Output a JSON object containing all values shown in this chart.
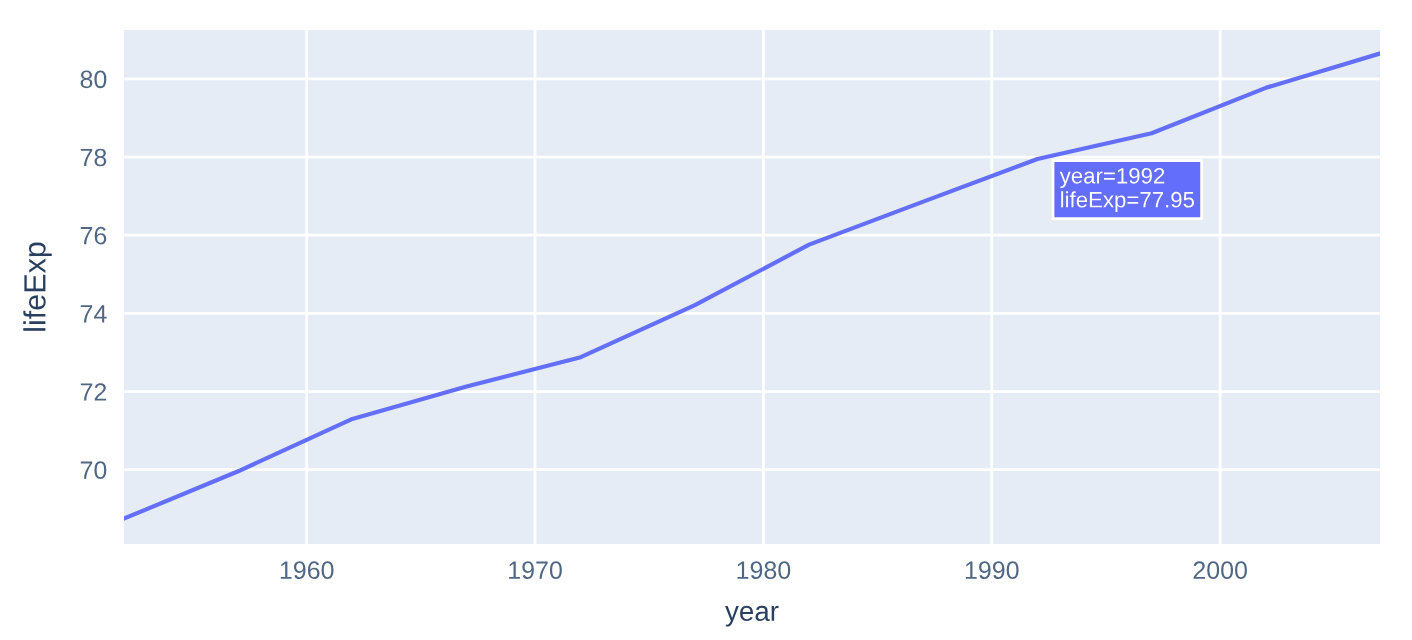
{
  "chart_data": {
    "type": "line",
    "xlabel": "year",
    "ylabel": "lifeExp",
    "x": [
      1952,
      1957,
      1962,
      1967,
      1972,
      1977,
      1982,
      1987,
      1992,
      1997,
      2002,
      2007
    ],
    "series": [
      {
        "color": "#636efa",
        "values": [
          68.75,
          69.96,
          71.3,
          72.13,
          72.88,
          74.21,
          75.76,
          76.86,
          77.95,
          78.61,
          79.77,
          80.65
        ]
      }
    ],
    "xlim": [
      1952,
      2007
    ],
    "xticks": [
      1960,
      1970,
      1980,
      1990,
      2000
    ],
    "ylim": [
      68.1,
      81.25
    ],
    "yticks": [
      70,
      72,
      74,
      76,
      78,
      80
    ],
    "annotations": [
      {
        "text": "year=1992\nlifeExp=77.95",
        "x": 1992,
        "y": 77.95
      }
    ],
    "grid": true,
    "legend": false,
    "line_style": "solid",
    "marker": "none"
  }
}
